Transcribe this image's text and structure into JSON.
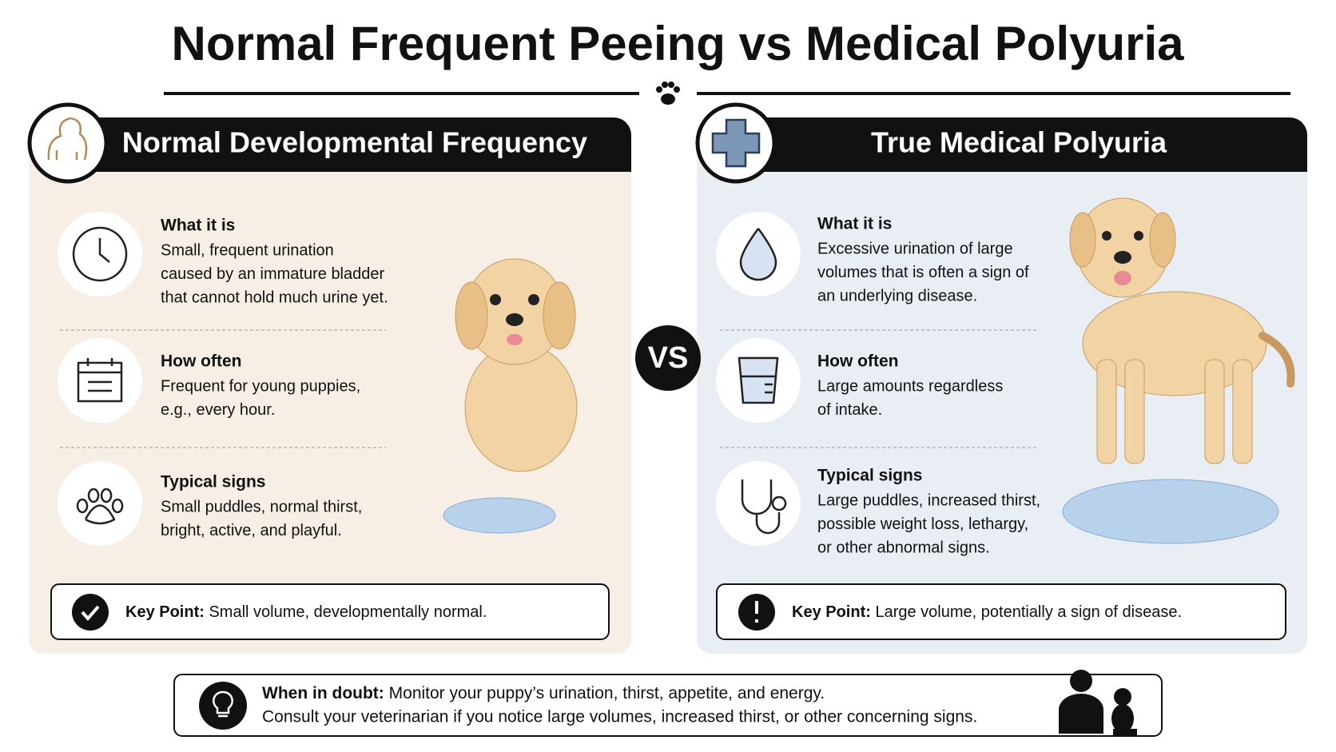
{
  "title": "Normal Frequent Peeing vs Medical Polyuria",
  "vs": "VS",
  "left": {
    "heading": "Normal Developmental Frequency",
    "items": [
      {
        "label": "What it is",
        "lines": [
          "Small, frequent urination",
          "caused by an immature bladder",
          "that cannot hold much urine yet."
        ]
      },
      {
        "label": "How often",
        "lines": [
          "Frequent for young puppies,",
          "e.g., every hour."
        ]
      },
      {
        "label": "Typical signs",
        "lines": [
          "Small puddles, normal thirst,",
          "bright, active, and playful."
        ]
      }
    ],
    "key_point": {
      "label": "Key Point:",
      "text": "Small volume, developmentally normal."
    }
  },
  "right": {
    "heading": "True Medical Polyuria",
    "items": [
      {
        "label": "What it is",
        "lines": [
          "Excessive urination of large",
          "volumes that is often a sign of",
          "an underlying disease."
        ]
      },
      {
        "label": "How often",
        "lines": [
          "Large amounts regardless",
          "of intake."
        ]
      },
      {
        "label": "Typical signs",
        "lines": [
          "Large puddles, increased thirst,",
          "possible weight loss, lethargy,",
          "or other abnormal signs."
        ]
      }
    ],
    "key_point": {
      "label": "Key Point:",
      "text": "Large volume, potentially a sign of disease."
    }
  },
  "footer": {
    "label": "When in doubt:",
    "line1": "Monitor your puppy’s urination, thirst, appetite, and energy.",
    "line2": "Consult your veterinarian if you notice large volumes, increased thirst, or other concerning signs."
  }
}
